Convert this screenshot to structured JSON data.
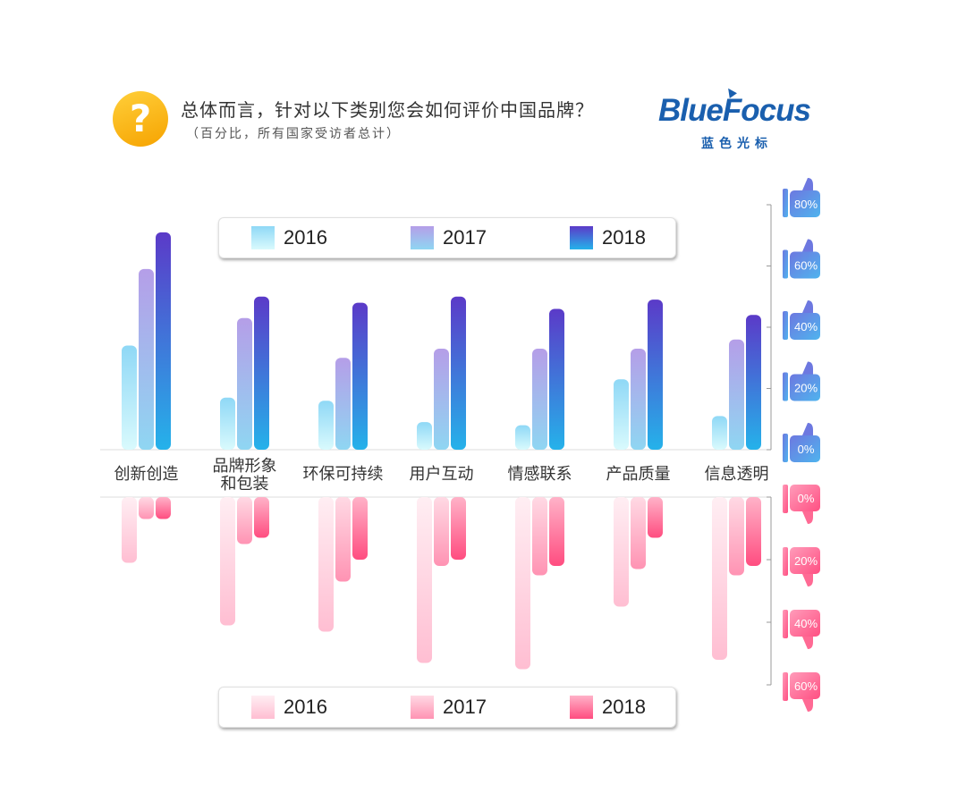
{
  "header": {
    "icon": "question-mark-icon",
    "icon_glyph": "?",
    "title": "总体而言，针对以下类别您会如何评价中国品牌？",
    "subtitle": "（百分比，所有国家受访者总计）"
  },
  "logo": {
    "brand": "BlueFocus",
    "brand_cn": "蓝色光标"
  },
  "legend_top": {
    "items": [
      {
        "label": "2016",
        "color_top": "#a8e6f8",
        "color_bottom": "#7fd3f4"
      },
      {
        "label": "2017",
        "color_top": "#c5a8ec",
        "color_bottom": "#9fc4f0"
      },
      {
        "label": "2018",
        "color_top": "#5a3fc9",
        "color_bottom": "#2aa8e6"
      }
    ]
  },
  "legend_bottom": {
    "items": [
      {
        "label": "2016",
        "color": "#ffc4d6"
      },
      {
        "label": "2017",
        "color": "#ff9cb8"
      },
      {
        "label": "2018",
        "color": "#ff5a8a"
      }
    ]
  },
  "chart_data": {
    "type": "bar",
    "categories": [
      "创新创造",
      "品牌形象\n和包装",
      "环保可持续",
      "用户互动",
      "情感联系",
      "产品质量",
      "信息透明"
    ],
    "positive": {
      "axis_ticks": [
        "0%",
        "20%",
        "40%",
        "60%",
        "80%"
      ],
      "ylim": [
        0,
        80
      ],
      "series": [
        {
          "name": "2016",
          "values": [
            34,
            17,
            16,
            9,
            8,
            23,
            11
          ]
        },
        {
          "name": "2017",
          "values": [
            59,
            43,
            30,
            33,
            33,
            33,
            36
          ]
        },
        {
          "name": "2018",
          "values": [
            71,
            50,
            48,
            50,
            46,
            49,
            44
          ]
        }
      ]
    },
    "negative": {
      "axis_ticks": [
        "0%",
        "20%",
        "40%",
        "60%"
      ],
      "ylim": [
        0,
        60
      ],
      "series": [
        {
          "name": "2016",
          "values": [
            21,
            41,
            43,
            53,
            55,
            35,
            52
          ]
        },
        {
          "name": "2017",
          "values": [
            7,
            15,
            27,
            22,
            25,
            23,
            25
          ]
        },
        {
          "name": "2018",
          "values": [
            7,
            13,
            20,
            20,
            22,
            13,
            22
          ]
        }
      ]
    },
    "grid": false,
    "legend": "top-and-bottom"
  }
}
